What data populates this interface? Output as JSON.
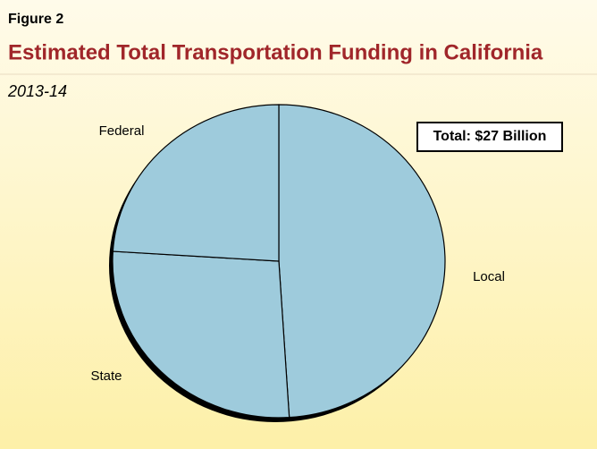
{
  "chart_data": {
    "type": "pie",
    "figure_label": "Figure 2",
    "title": "Estimated Total Transportation Funding in California",
    "subtitle": "2013-14",
    "annotation": "Total: $27 Billion",
    "categories": [
      "Local",
      "State",
      "Federal"
    ],
    "values": [
      49,
      27,
      24
    ],
    "color": "#9ecbdc"
  }
}
